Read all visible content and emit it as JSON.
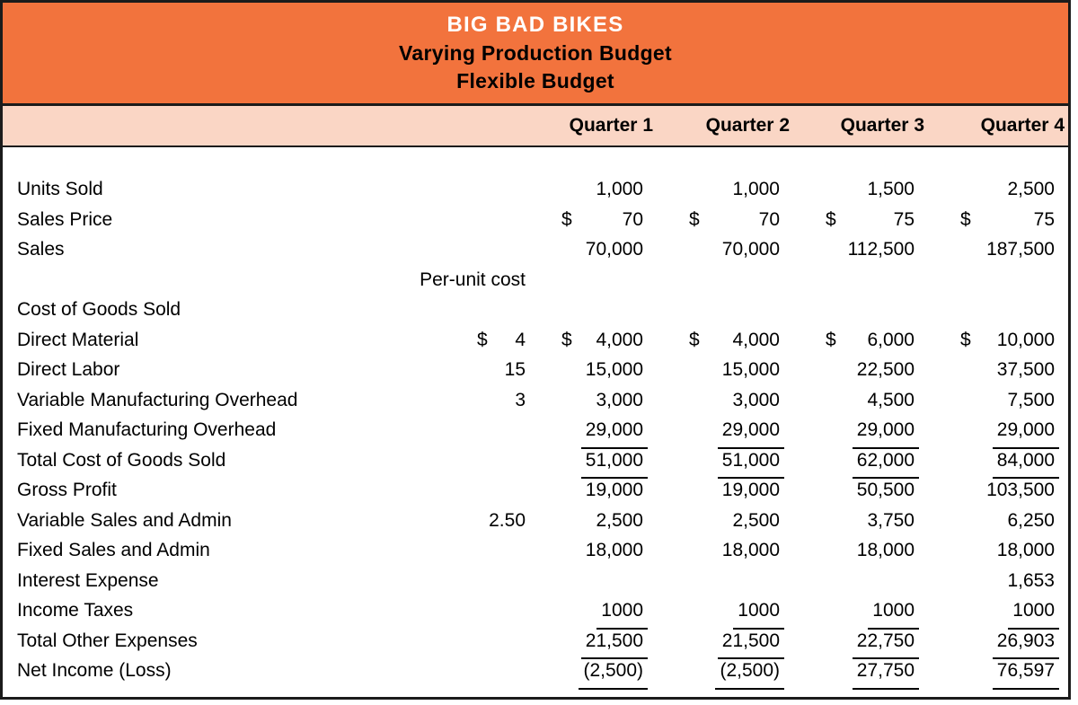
{
  "header": {
    "company": "BIG BAD BIKES",
    "report_title": "Varying Production Budget",
    "report_subtitle": "Flexible Budget"
  },
  "columns": [
    "Quarter 1",
    "Quarter 2",
    "Quarter 3",
    "Quarter 4"
  ],
  "per_unit_column_header": "Per-unit cost",
  "colors": {
    "title_band": "#F2733D",
    "quarter_band": "#FAD6C5",
    "border": "#1B1B1B",
    "title_text": "#FFFFFF",
    "body_text": "#000000"
  },
  "rows": [
    {
      "label": "Units Sold",
      "pu_cur": "",
      "pu": "",
      "cur": false,
      "ul": false,
      "values": [
        "1,000",
        "1,000",
        "1,500",
        "2,500"
      ]
    },
    {
      "label": "Sales Price",
      "pu_cur": "",
      "pu": "",
      "cur": true,
      "ul": false,
      "values": [
        "70",
        "70",
        "75",
        "75"
      ]
    },
    {
      "label": "Sales",
      "pu_cur": "",
      "pu": "",
      "cur": false,
      "ul": false,
      "values": [
        "70,000",
        "70,000",
        "112,500",
        "187,500"
      ]
    },
    {
      "label": "",
      "pu_cur": "",
      "pu": "Per-unit cost",
      "cur": false,
      "ul": false,
      "values": [
        "",
        "",
        "",
        ""
      ]
    },
    {
      "label": "Cost of Goods Sold",
      "pu_cur": "",
      "pu": "",
      "cur": false,
      "ul": false,
      "values": [
        "",
        "",
        "",
        ""
      ]
    },
    {
      "label": "Direct Material",
      "pu_cur": "$",
      "pu": "4",
      "cur": true,
      "ul": false,
      "values": [
        "4,000",
        "4,000",
        "6,000",
        "10,000"
      ]
    },
    {
      "label": "Direct Labor",
      "pu_cur": "",
      "pu": "15",
      "cur": false,
      "ul": false,
      "values": [
        "15,000",
        "15,000",
        "22,500",
        "37,500"
      ]
    },
    {
      "label": "Variable Manufacturing Overhead",
      "pu_cur": "",
      "pu": "3",
      "cur": false,
      "ul": false,
      "values": [
        "3,000",
        "3,000",
        "4,500",
        "7,500"
      ]
    },
    {
      "label": "Fixed Manufacturing Overhead",
      "pu_cur": "",
      "pu": "",
      "cur": false,
      "ul": true,
      "values": [
        "29,000",
        "29,000",
        "29,000",
        "29,000"
      ]
    },
    {
      "label": "Total Cost of Goods Sold",
      "pu_cur": "",
      "pu": "",
      "cur": false,
      "ul": true,
      "values": [
        "51,000",
        "51,000",
        "62,000",
        "84,000"
      ]
    },
    {
      "label": "Gross Profit",
      "pu_cur": "",
      "pu": "",
      "cur": false,
      "ul": false,
      "values": [
        "19,000",
        "19,000",
        "50,500",
        "103,500"
      ]
    },
    {
      "label": "Variable Sales and Admin",
      "pu_cur": "",
      "pu": "2.50",
      "cur": false,
      "ul": false,
      "values": [
        "2,500",
        "2,500",
        "3,750",
        "6,250"
      ]
    },
    {
      "label": "Fixed Sales and Admin",
      "pu_cur": "",
      "pu": "",
      "cur": false,
      "ul": false,
      "values": [
        "18,000",
        "18,000",
        "18,000",
        "18,000"
      ]
    },
    {
      "label": "Interest Expense",
      "pu_cur": "",
      "pu": "",
      "cur": false,
      "ul": false,
      "values": [
        "",
        "",
        "",
        "1,653"
      ]
    },
    {
      "label": "Income Taxes",
      "pu_cur": "",
      "pu": "",
      "cur": false,
      "ul": true,
      "values": [
        "1000",
        "1000",
        "1000",
        "1000"
      ]
    },
    {
      "label": "Total Other Expenses",
      "pu_cur": "",
      "pu": "",
      "cur": false,
      "ul": true,
      "values": [
        "21,500",
        "21,500",
        "22,750",
        "26,903"
      ]
    },
    {
      "label": "Net Income (Loss)",
      "pu_cur": "",
      "pu": "",
      "cur": false,
      "ul": true,
      "values": [
        "(2,500)",
        "(2,500)",
        "27,750",
        "76,597"
      ]
    }
  ]
}
